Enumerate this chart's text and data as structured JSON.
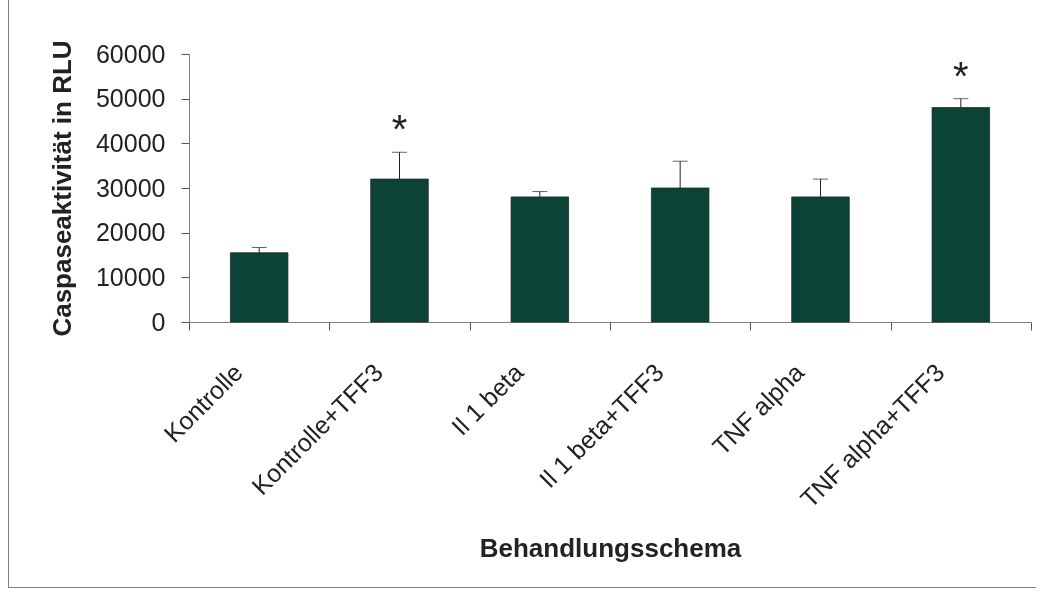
{
  "chart_data": {
    "type": "bar",
    "xlabel": "Behandlungsschema",
    "ylabel": "Caspaseaktivität in RLU",
    "categories": [
      "Kontrolle",
      "Kontrolle+TFF3",
      "Il 1 beta",
      "Il 1 beta+TFF3",
      "TNF alpha",
      "TNF alpha+TFF3"
    ],
    "values": [
      15500,
      32000,
      28000,
      30000,
      28000,
      48000
    ],
    "errors": [
      [
        15500,
        16700
      ],
      [
        32000,
        38000
      ],
      [
        28000,
        29200
      ],
      [
        30000,
        36000
      ],
      [
        28000,
        32000
      ],
      [
        48000,
        50000
      ]
    ],
    "color": "#0b4336",
    "ylim": [
      0,
      60000
    ],
    "yticks": [
      0,
      10000,
      20000,
      30000,
      40000,
      50000,
      60000
    ],
    "grid": false,
    "annotations": [
      "*",
      "*"
    ]
  }
}
